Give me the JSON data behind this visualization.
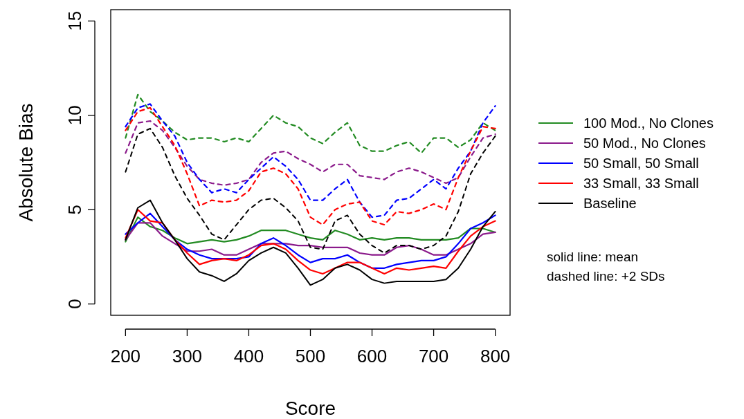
{
  "chart_data": {
    "type": "line",
    "xlabel": "Score",
    "ylabel": "Absolute Bias",
    "x": [
      200,
      220,
      240,
      260,
      280,
      300,
      320,
      340,
      360,
      380,
      400,
      420,
      440,
      460,
      480,
      500,
      520,
      540,
      560,
      580,
      600,
      620,
      640,
      660,
      680,
      700,
      720,
      740,
      760,
      780,
      800
    ],
    "xlim": [
      176,
      824
    ],
    "xticks": [
      200,
      300,
      400,
      500,
      600,
      700,
      800
    ],
    "ylim": [
      -0.6,
      15.6
    ],
    "yticks": [
      0,
      5,
      10,
      15
    ],
    "legend": "right",
    "series": [
      {
        "name": "100 Mod., No Clones",
        "color": "#228b22",
        "line_style": "solid",
        "values": [
          3.3,
          4.6,
          4.1,
          3.9,
          3.5,
          3.2,
          3.3,
          3.4,
          3.3,
          3.4,
          3.6,
          3.9,
          3.9,
          3.9,
          3.7,
          3.5,
          3.4,
          3.9,
          3.7,
          3.4,
          3.5,
          3.4,
          3.5,
          3.5,
          3.4,
          3.4,
          3.4,
          3.5,
          4.0,
          4.0,
          3.8
        ]
      },
      {
        "name": "50 Mod., No Clones",
        "color": "#8b1a8b",
        "line_style": "solid",
        "values": [
          3.4,
          4.3,
          4.3,
          3.6,
          3.2,
          2.8,
          2.8,
          2.9,
          2.6,
          2.6,
          2.9,
          3.2,
          3.2,
          3.2,
          3.1,
          3.1,
          3.0,
          3.0,
          3.0,
          2.7,
          2.6,
          2.6,
          3.0,
          3.1,
          2.9,
          2.6,
          2.6,
          2.9,
          3.2,
          3.7,
          3.8
        ]
      },
      {
        "name": "50 Small, 50 Small",
        "color": "#0000ff",
        "line_style": "solid",
        "values": [
          3.7,
          4.3,
          4.8,
          4.1,
          3.4,
          2.9,
          2.6,
          2.4,
          2.4,
          2.4,
          2.5,
          3.2,
          3.5,
          3.1,
          2.6,
          2.2,
          2.4,
          2.4,
          2.6,
          2.2,
          1.9,
          1.9,
          2.1,
          2.2,
          2.3,
          2.3,
          2.5,
          3.2,
          4.0,
          4.3,
          4.7
        ]
      },
      {
        "name": "33 Small, 33 Small",
        "color": "#ff0000",
        "line_style": "solid",
        "values": [
          3.5,
          5.0,
          4.4,
          4.3,
          3.4,
          2.7,
          2.1,
          2.3,
          2.4,
          2.3,
          2.6,
          3.1,
          3.2,
          2.9,
          2.3,
          1.8,
          1.6,
          1.9,
          2.2,
          2.2,
          1.9,
          1.6,
          1.9,
          1.8,
          1.9,
          2.0,
          1.9,
          2.8,
          3.6,
          4.1,
          4.4
        ]
      },
      {
        "name": "Baseline",
        "color": "#000000",
        "line_style": "solid",
        "values": [
          3.4,
          5.1,
          5.5,
          4.3,
          3.4,
          2.4,
          1.7,
          1.5,
          1.2,
          1.6,
          2.3,
          2.7,
          3.0,
          2.7,
          1.9,
          1.0,
          1.3,
          1.9,
          2.1,
          1.8,
          1.3,
          1.1,
          1.2,
          1.2,
          1.2,
          1.2,
          1.3,
          1.9,
          2.9,
          4.1,
          4.9
        ]
      },
      {
        "color": "#228b22",
        "line_style": "dashed",
        "values": [
          8.8,
          11.1,
          10.2,
          9.7,
          9.1,
          8.7,
          8.8,
          8.8,
          8.6,
          8.8,
          8.6,
          9.3,
          10.0,
          9.6,
          9.4,
          8.8,
          8.5,
          9.1,
          9.6,
          8.4,
          8.1,
          8.1,
          8.4,
          8.6,
          8.0,
          8.8,
          8.8,
          8.3,
          8.7,
          9.6,
          9.2
        ]
      },
      {
        "color": "#8b1a8b",
        "line_style": "dashed",
        "values": [
          8.0,
          9.6,
          9.7,
          9.2,
          8.3,
          7.3,
          6.6,
          6.4,
          6.3,
          6.4,
          6.6,
          7.5,
          8.0,
          8.1,
          7.7,
          7.4,
          7.0,
          7.4,
          7.4,
          6.8,
          6.7,
          6.6,
          7.0,
          7.2,
          7.0,
          6.7,
          6.4,
          6.7,
          7.8,
          8.8,
          9.0
        ]
      },
      {
        "color": "#0000ff",
        "line_style": "dashed",
        "values": [
          9.4,
          10.4,
          10.6,
          9.7,
          8.9,
          7.5,
          6.6,
          5.9,
          6.1,
          5.9,
          6.6,
          7.2,
          7.8,
          7.3,
          6.6,
          5.5,
          5.5,
          6.1,
          6.6,
          5.4,
          4.6,
          4.7,
          5.5,
          5.6,
          6.1,
          6.6,
          6.1,
          7.2,
          8.1,
          9.6,
          10.5
        ]
      },
      {
        "color": "#ff0000",
        "line_style": "dashed",
        "values": [
          9.2,
          10.2,
          10.4,
          9.4,
          8.4,
          6.9,
          5.2,
          5.5,
          5.4,
          5.5,
          6.0,
          7.0,
          7.2,
          6.9,
          6.1,
          4.6,
          4.2,
          5.0,
          5.3,
          5.4,
          4.4,
          4.2,
          4.9,
          4.8,
          5.0,
          5.3,
          5.0,
          6.7,
          8.1,
          9.4,
          9.3
        ]
      },
      {
        "color": "#000000",
        "line_style": "dashed",
        "values": [
          7.0,
          9.0,
          9.3,
          8.3,
          6.8,
          5.6,
          4.7,
          3.7,
          3.4,
          4.2,
          5.0,
          5.5,
          5.6,
          5.1,
          4.4,
          3.0,
          2.9,
          4.4,
          4.7,
          3.7,
          3.1,
          2.7,
          3.1,
          3.1,
          2.9,
          3.1,
          3.6,
          4.9,
          6.9,
          8.0,
          8.9
        ]
      }
    ],
    "annotations": [
      "solid line: mean",
      "dashed line: +2 SDs"
    ]
  }
}
